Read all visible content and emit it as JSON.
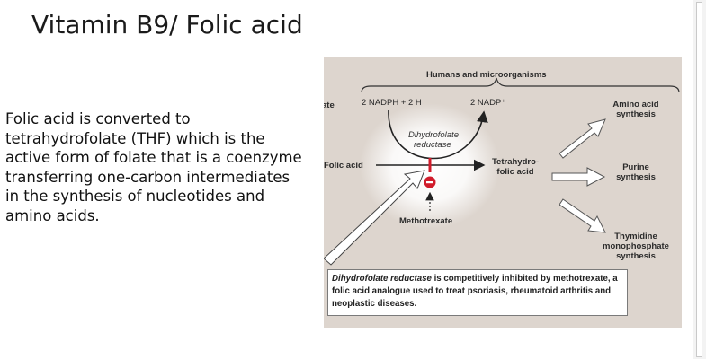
{
  "slide": {
    "title": "Vitamin B9/ Folic acid",
    "body": "Folic acid is converted to tetrahydrofolate (THF) which is the active form of folate that is a coenzyme transferring one-carbon intermediates in the synthesis of nucleotides and amino acids."
  },
  "figure": {
    "header": "Humans and microorganisms",
    "left_cut": "ate",
    "nadph": "2 NADPH + 2 H⁺",
    "nadp": "2 NADP⁺",
    "enzyme_line1": "Dihydrofolate",
    "enzyme_line2": "reductase",
    "substrate": "Folic acid",
    "product_line1": "Tetrahydro-",
    "product_line2": "folic acid",
    "inhibitor": "Methotrexate",
    "out1_line1": "Amino acid",
    "out1_line2": "synthesis",
    "out2_line1": "Purine",
    "out2_line2": "synthesis",
    "out3_line1": "Thymidine",
    "out3_line2": "monophosphate",
    "out3_line3": "synthesis",
    "caption_italic": "Dihydrofolate reductase",
    "caption_rest": " is competitively inhibited by methotrexate, a folic acid analogue used to treat psoriasis, rheumatoid arthritis and neoplastic diseases.",
    "colors": {
      "background": "#ddd5ce",
      "inhibit": "#d11c2b"
    }
  }
}
